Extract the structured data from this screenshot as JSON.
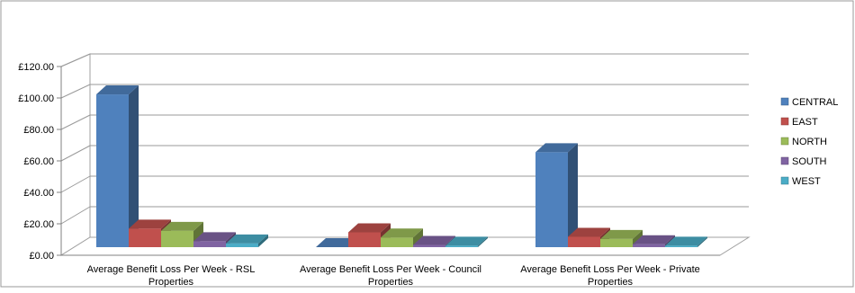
{
  "chart_data": {
    "type": "bar",
    "categories": [
      [
        "Average Benefit Loss Per Week - RSL",
        "Properties"
      ],
      [
        "Average Benefit Loss Per Week - Council",
        "Properties"
      ],
      [
        "Average Benefit Loss Per Week - Private",
        "Properties"
      ]
    ],
    "series": [
      {
        "name": "CENTRAL",
        "values": [
          103.0,
          0.0,
          64.0
        ],
        "color": "#4F81BD"
      },
      {
        "name": "EAST",
        "values": [
          12.5,
          10.0,
          7.0
        ],
        "color": "#C0504D"
      },
      {
        "name": "NORTH",
        "values": [
          11.0,
          6.5,
          5.5
        ],
        "color": "#9BBB59"
      },
      {
        "name": "SOUTH",
        "values": [
          4.0,
          1.5,
          2.0
        ],
        "color": "#8064A2"
      },
      {
        "name": "WEST",
        "values": [
          2.5,
          1.0,
          1.0
        ],
        "color": "#4BACC6"
      }
    ],
    "yticks": [
      "£0.00",
      "£20.00",
      "£40.00",
      "£60.00",
      "£80.00",
      "£100.00",
      "£120.00"
    ],
    "ylim": [
      0,
      120
    ],
    "title": "",
    "xlabel": "",
    "ylabel": "",
    "grid": true,
    "legend_position": "right",
    "style": "3d-clustered-column"
  }
}
